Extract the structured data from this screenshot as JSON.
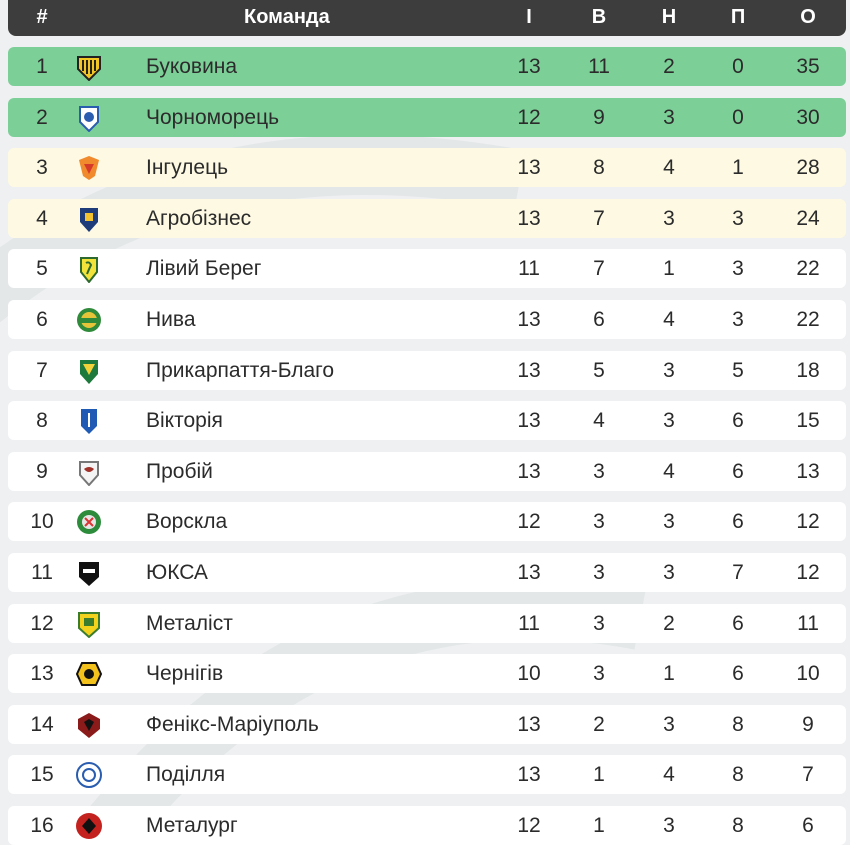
{
  "header": {
    "pos": "#",
    "team": "Команда",
    "played": "І",
    "won": "В",
    "drawn": "Н",
    "lost": "П",
    "points": "О"
  },
  "rows": [
    {
      "pos": "1",
      "team": "Буковина",
      "played": "13",
      "won": "11",
      "drawn": "2",
      "lost": "0",
      "points": "35",
      "status": "promotion",
      "logo_icon": "bukovyna-crest-icon"
    },
    {
      "pos": "2",
      "team": "Чорноморець",
      "played": "12",
      "won": "9",
      "drawn": "3",
      "lost": "0",
      "points": "30",
      "status": "promotion",
      "logo_icon": "chornomorets-crest-icon"
    },
    {
      "pos": "3",
      "team": "Інгулець",
      "played": "13",
      "won": "8",
      "drawn": "4",
      "lost": "1",
      "points": "28",
      "status": "playoff",
      "logo_icon": "inhulets-crest-icon"
    },
    {
      "pos": "4",
      "team": "Агробізнес",
      "played": "13",
      "won": "7",
      "drawn": "3",
      "lost": "3",
      "points": "24",
      "status": "playoff",
      "logo_icon": "ahrobiznes-crest-icon"
    },
    {
      "pos": "5",
      "team": "Лівий Берег",
      "played": "11",
      "won": "7",
      "drawn": "1",
      "lost": "3",
      "points": "22",
      "status": "normal",
      "logo_icon": "livyi-bereh-crest-icon"
    },
    {
      "pos": "6",
      "team": "Нива",
      "played": "13",
      "won": "6",
      "drawn": "4",
      "lost": "3",
      "points": "22",
      "status": "normal",
      "logo_icon": "nyva-crest-icon"
    },
    {
      "pos": "7",
      "team": "Прикарпаття-Благо",
      "played": "13",
      "won": "5",
      "drawn": "3",
      "lost": "5",
      "points": "18",
      "status": "normal",
      "logo_icon": "prykarpattia-crest-icon"
    },
    {
      "pos": "8",
      "team": "Вікторія",
      "played": "13",
      "won": "4",
      "drawn": "3",
      "lost": "6",
      "points": "15",
      "status": "normal",
      "logo_icon": "viktoriia-crest-icon"
    },
    {
      "pos": "9",
      "team": "Пробій",
      "played": "13",
      "won": "3",
      "drawn": "4",
      "lost": "6",
      "points": "13",
      "status": "normal",
      "logo_icon": "probii-crest-icon"
    },
    {
      "pos": "10",
      "team": "Ворскла",
      "played": "12",
      "won": "3",
      "drawn": "3",
      "lost": "6",
      "points": "12",
      "status": "normal",
      "logo_icon": "vorskla-crest-icon"
    },
    {
      "pos": "11",
      "team": "ЮКСА",
      "played": "13",
      "won": "3",
      "drawn": "3",
      "lost": "7",
      "points": "12",
      "status": "normal",
      "logo_icon": "yuksa-crest-icon"
    },
    {
      "pos": "12",
      "team": "Металіст",
      "played": "11",
      "won": "3",
      "drawn": "2",
      "lost": "6",
      "points": "11",
      "status": "normal",
      "logo_icon": "metalist-crest-icon"
    },
    {
      "pos": "13",
      "team": "Чернігів",
      "played": "10",
      "won": "3",
      "drawn": "1",
      "lost": "6",
      "points": "10",
      "status": "normal",
      "logo_icon": "chernihiv-crest-icon"
    },
    {
      "pos": "14",
      "team": "Фенікс-Маріуполь",
      "played": "13",
      "won": "2",
      "drawn": "3",
      "lost": "8",
      "points": "9",
      "status": "normal",
      "logo_icon": "feniks-crest-icon"
    },
    {
      "pos": "15",
      "team": "Поділля",
      "played": "13",
      "won": "1",
      "drawn": "4",
      "lost": "8",
      "points": "7",
      "status": "normal",
      "logo_icon": "podillia-crest-icon"
    },
    {
      "pos": "16",
      "team": "Металург",
      "played": "12",
      "won": "1",
      "drawn": "3",
      "lost": "8",
      "points": "6",
      "status": "normal",
      "logo_icon": "metalurh-crest-icon"
    }
  ],
  "colors": {
    "header_bg": "#3d3d3d",
    "promotion_bg": "#7dcf98",
    "playoff_bg": "#fdf9e3",
    "row_bg": "#ffffff",
    "page_bg": "#eef0f1"
  }
}
